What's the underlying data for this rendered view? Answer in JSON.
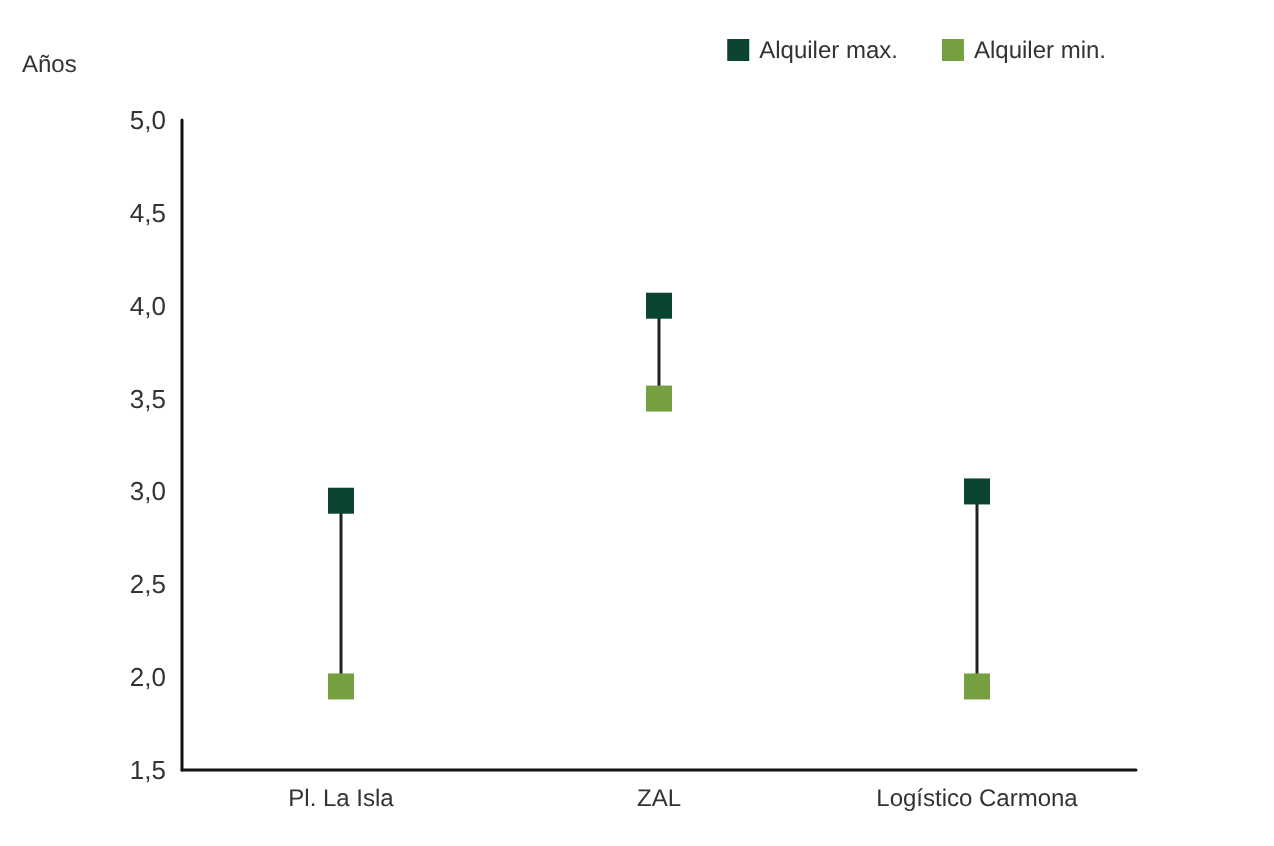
{
  "chart_data": {
    "type": "scatter",
    "ylabel": "Años",
    "categories": [
      "Pl. La Isla",
      "ZAL",
      "Logístico Carmona"
    ],
    "series": [
      {
        "name": "Alquiler max.",
        "color": "#0b4532",
        "values": [
          2.95,
          4.0,
          3.0
        ]
      },
      {
        "name": "Alquiler min.",
        "color": "#76a040",
        "values": [
          1.95,
          3.5,
          1.95
        ]
      }
    ],
    "ylim": [
      1.5,
      5.0
    ],
    "yticks": [
      {
        "value": 1.5,
        "label": "1,5"
      },
      {
        "value": 2.0,
        "label": "2,0"
      },
      {
        "value": 2.5,
        "label": "2,5"
      },
      {
        "value": 3.0,
        "label": "3,0"
      },
      {
        "value": 3.5,
        "label": "3,5"
      },
      {
        "value": 4.0,
        "label": "4,0"
      },
      {
        "value": 4.5,
        "label": "4,5"
      },
      {
        "value": 5.0,
        "label": "5,0"
      }
    ],
    "grid": false,
    "legend": "top right",
    "marker": "square"
  }
}
